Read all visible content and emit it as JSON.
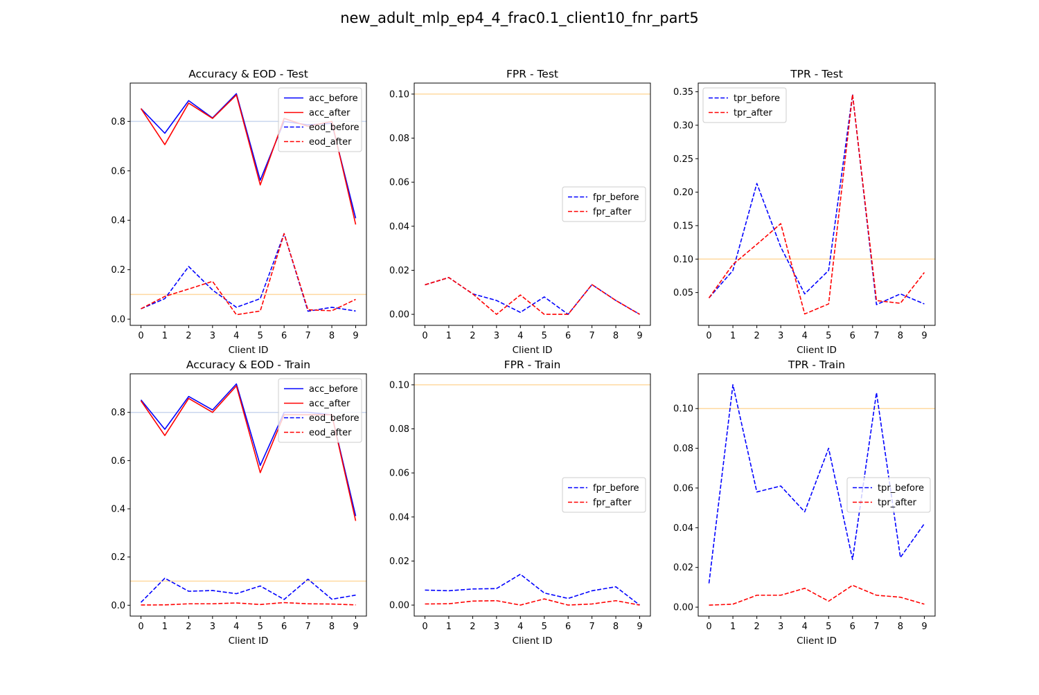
{
  "figure": {
    "suptitle": "new_adult_mlp_ep4_4_frac0.1_client10_fnr_part5",
    "colors": {
      "before": "#0000ff",
      "after": "#ff0000",
      "ref_orange": "#ffd9a0",
      "ref_blue": "#c9d6ee"
    }
  },
  "chart_data": [
    {
      "type": "line",
      "title": "Accuracy & EOD - Test",
      "xlabel": "Client ID",
      "ylabel": "",
      "x": [
        0,
        1,
        2,
        3,
        4,
        5,
        6,
        7,
        8,
        9
      ],
      "xlim": [
        -0.45,
        9.45
      ],
      "ylim": [
        -0.025,
        0.955
      ],
      "yticks": [
        0.0,
        0.2,
        0.4,
        0.6,
        0.8
      ],
      "ytick_labels": [
        "0.0",
        "0.2",
        "0.4",
        "0.6",
        "0.8"
      ],
      "reference_lines": [
        {
          "y": 0.8,
          "color": "#c9d6ee"
        },
        {
          "y": 0.1,
          "color": "#ffd9a0"
        }
      ],
      "legend_position": "upper right",
      "series": [
        {
          "name": "acc_before",
          "style": "solid",
          "color": "#0000ff",
          "values": [
            0.852,
            0.752,
            0.884,
            0.814,
            0.912,
            0.562,
            0.8,
            0.786,
            0.792,
            0.408
          ]
        },
        {
          "name": "acc_after",
          "style": "solid",
          "color": "#ff0000",
          "values": [
            0.852,
            0.706,
            0.874,
            0.812,
            0.907,
            0.543,
            0.812,
            0.78,
            0.8,
            0.383
          ]
        },
        {
          "name": "eod_before",
          "style": "dashed",
          "color": "#0000ff",
          "values": [
            0.042,
            0.083,
            0.213,
            0.118,
            0.048,
            0.083,
            0.346,
            0.032,
            0.048,
            0.033
          ]
        },
        {
          "name": "eod_after",
          "style": "dashed",
          "color": "#ff0000",
          "values": [
            0.042,
            0.092,
            0.122,
            0.153,
            0.018,
            0.033,
            0.346,
            0.038,
            0.034,
            0.08
          ]
        }
      ]
    },
    {
      "type": "line",
      "title": "FPR - Test",
      "xlabel": "Client ID",
      "ylabel": "",
      "x": [
        0,
        1,
        2,
        3,
        4,
        5,
        6,
        7,
        8,
        9
      ],
      "xlim": [
        -0.45,
        9.45
      ],
      "ylim": [
        -0.005,
        0.105
      ],
      "yticks": [
        0.0,
        0.02,
        0.04,
        0.06,
        0.08,
        0.1
      ],
      "ytick_labels": [
        "0.00",
        "0.02",
        "0.04",
        "0.06",
        "0.08",
        "0.10"
      ],
      "reference_lines": [
        {
          "y": 0.1,
          "color": "#ffd9a0"
        }
      ],
      "legend_position": "center right",
      "series": [
        {
          "name": "fpr_before",
          "style": "dashed",
          "color": "#0000ff",
          "values": [
            0.0134,
            0.0167,
            0.0093,
            0.0063,
            0.0009,
            0.0079,
            0.0,
            0.0135,
            0.0063,
            0.0
          ]
        },
        {
          "name": "fpr_after",
          "style": "dashed",
          "color": "#ff0000",
          "values": [
            0.0134,
            0.0167,
            0.0093,
            0.0,
            0.0088,
            0.0,
            0.0,
            0.0135,
            0.0063,
            0.0
          ]
        }
      ]
    },
    {
      "type": "line",
      "title": "TPR - Test",
      "xlabel": "Client ID",
      "ylabel": "",
      "x": [
        0,
        1,
        2,
        3,
        4,
        5,
        6,
        7,
        8,
        9
      ],
      "xlim": [
        -0.45,
        9.45
      ],
      "ylim": [
        0.001,
        0.363
      ],
      "yticks": [
        0.05,
        0.1,
        0.15,
        0.2,
        0.25,
        0.3,
        0.35
      ],
      "ytick_labels": [
        "0.05",
        "0.10",
        "0.15",
        "0.20",
        "0.25",
        "0.30",
        "0.35"
      ],
      "reference_lines": [
        {
          "y": 0.1,
          "color": "#ffd9a0"
        }
      ],
      "legend_position": "upper left",
      "series": [
        {
          "name": "tpr_before",
          "style": "dashed",
          "color": "#0000ff",
          "values": [
            0.042,
            0.083,
            0.213,
            0.118,
            0.048,
            0.083,
            0.346,
            0.032,
            0.048,
            0.033
          ]
        },
        {
          "name": "tpr_after",
          "style": "dashed",
          "color": "#ff0000",
          "values": [
            0.042,
            0.092,
            0.122,
            0.153,
            0.018,
            0.033,
            0.346,
            0.038,
            0.034,
            0.08
          ]
        }
      ]
    },
    {
      "type": "line",
      "title": "Accuracy & EOD - Train",
      "xlabel": "Client ID",
      "ylabel": "",
      "x": [
        0,
        1,
        2,
        3,
        4,
        5,
        6,
        7,
        8,
        9
      ],
      "xlim": [
        -0.45,
        9.45
      ],
      "ylim": [
        -0.045,
        0.96
      ],
      "yticks": [
        0.0,
        0.2,
        0.4,
        0.6,
        0.8
      ],
      "ytick_labels": [
        "0.0",
        "0.2",
        "0.4",
        "0.6",
        "0.8"
      ],
      "reference_lines": [
        {
          "y": 0.8,
          "color": "#c9d6ee"
        },
        {
          "y": 0.1,
          "color": "#ffd9a0"
        }
      ],
      "legend_position": "upper right",
      "series": [
        {
          "name": "acc_before",
          "style": "solid",
          "color": "#0000ff",
          "values": [
            0.852,
            0.73,
            0.866,
            0.81,
            0.918,
            0.58,
            0.8,
            0.8,
            0.79,
            0.37
          ]
        },
        {
          "name": "acc_after",
          "style": "solid",
          "color": "#ff0000",
          "values": [
            0.848,
            0.704,
            0.858,
            0.8,
            0.91,
            0.55,
            0.79,
            0.79,
            0.79,
            0.35
          ]
        },
        {
          "name": "eod_before",
          "style": "dashed",
          "color": "#0000ff",
          "values": [
            0.012,
            0.112,
            0.058,
            0.061,
            0.048,
            0.08,
            0.024,
            0.108,
            0.025,
            0.042
          ]
        },
        {
          "name": "eod_after",
          "style": "dashed",
          "color": "#ff0000",
          "values": [
            0.001,
            0.0015,
            0.006,
            0.006,
            0.0095,
            0.003,
            0.011,
            0.006,
            0.005,
            0.0015
          ]
        }
      ]
    },
    {
      "type": "line",
      "title": "FPR - Train",
      "xlabel": "Client ID",
      "ylabel": "",
      "x": [
        0,
        1,
        2,
        3,
        4,
        5,
        6,
        7,
        8,
        9
      ],
      "xlim": [
        -0.45,
        9.45
      ],
      "ylim": [
        -0.005,
        0.105
      ],
      "yticks": [
        0.0,
        0.02,
        0.04,
        0.06,
        0.08,
        0.1
      ],
      "ytick_labels": [
        "0.00",
        "0.02",
        "0.04",
        "0.06",
        "0.08",
        "0.10"
      ],
      "reference_lines": [
        {
          "y": 0.1,
          "color": "#ffd9a0"
        }
      ],
      "legend_position": "center right",
      "series": [
        {
          "name": "fpr_before",
          "style": "dashed",
          "color": "#0000ff",
          "values": [
            0.0068,
            0.0065,
            0.0073,
            0.0075,
            0.014,
            0.0055,
            0.003,
            0.0065,
            0.0083,
            0.0
          ]
        },
        {
          "name": "fpr_after",
          "style": "dashed",
          "color": "#ff0000",
          "values": [
            0.0005,
            0.0006,
            0.0018,
            0.002,
            0.0,
            0.0028,
            0.0,
            0.0005,
            0.002,
            0.0
          ]
        }
      ]
    },
    {
      "type": "line",
      "title": "TPR - Train",
      "xlabel": "Client ID",
      "ylabel": "",
      "x": [
        0,
        1,
        2,
        3,
        4,
        5,
        6,
        7,
        8,
        9
      ],
      "xlim": [
        -0.45,
        9.45
      ],
      "ylim": [
        -0.0045,
        0.1175
      ],
      "yticks": [
        0.0,
        0.02,
        0.04,
        0.06,
        0.08,
        0.1
      ],
      "ytick_labels": [
        "0.00",
        "0.02",
        "0.04",
        "0.06",
        "0.08",
        "0.10"
      ],
      "reference_lines": [
        {
          "y": 0.1,
          "color": "#ffd9a0"
        }
      ],
      "legend_position": "center right",
      "series": [
        {
          "name": "tpr_before",
          "style": "dashed",
          "color": "#0000ff",
          "values": [
            0.012,
            0.112,
            0.058,
            0.061,
            0.048,
            0.08,
            0.024,
            0.108,
            0.025,
            0.042
          ]
        },
        {
          "name": "tpr_after",
          "style": "dashed",
          "color": "#ff0000",
          "values": [
            0.001,
            0.0015,
            0.006,
            0.006,
            0.0095,
            0.003,
            0.011,
            0.006,
            0.005,
            0.0015
          ]
        }
      ]
    }
  ]
}
